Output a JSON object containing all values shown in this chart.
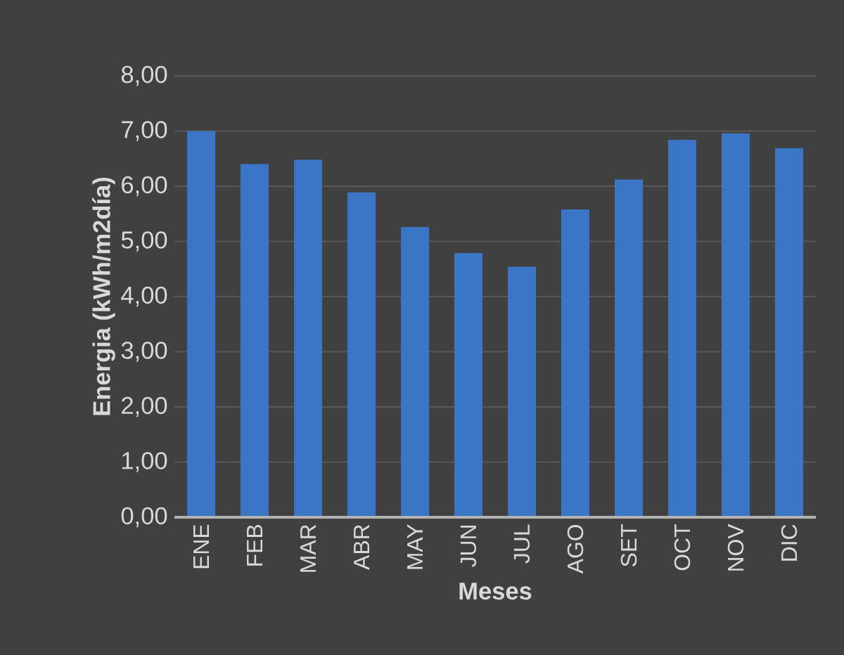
{
  "chart_data": {
    "type": "bar",
    "xlabel": "Meses",
    "ylabel": "Energia (kWh/m2día)",
    "categories": [
      "ENE",
      "FEB",
      "MAR",
      "ABR",
      "MAY",
      "JUN",
      "JUL",
      "AGO",
      "SET",
      "OCT",
      "NOV",
      "DIC"
    ],
    "values": [
      7.0,
      6.4,
      6.48,
      5.89,
      5.26,
      4.79,
      4.54,
      5.58,
      6.12,
      6.84,
      6.96,
      6.69
    ],
    "color": "#3b76c6",
    "ylim": [
      0,
      8
    ],
    "yticks": [
      {
        "value": 0,
        "label": "0,00"
      },
      {
        "value": 1,
        "label": "1,00"
      },
      {
        "value": 2,
        "label": "2,00"
      },
      {
        "value": 3,
        "label": "3,00"
      },
      {
        "value": 4,
        "label": "4,00"
      },
      {
        "value": 5,
        "label": "5,00"
      },
      {
        "value": 6,
        "label": "6,00"
      },
      {
        "value": 7,
        "label": "7,00"
      },
      {
        "value": 8,
        "label": "8,00"
      }
    ],
    "grid": "y"
  }
}
